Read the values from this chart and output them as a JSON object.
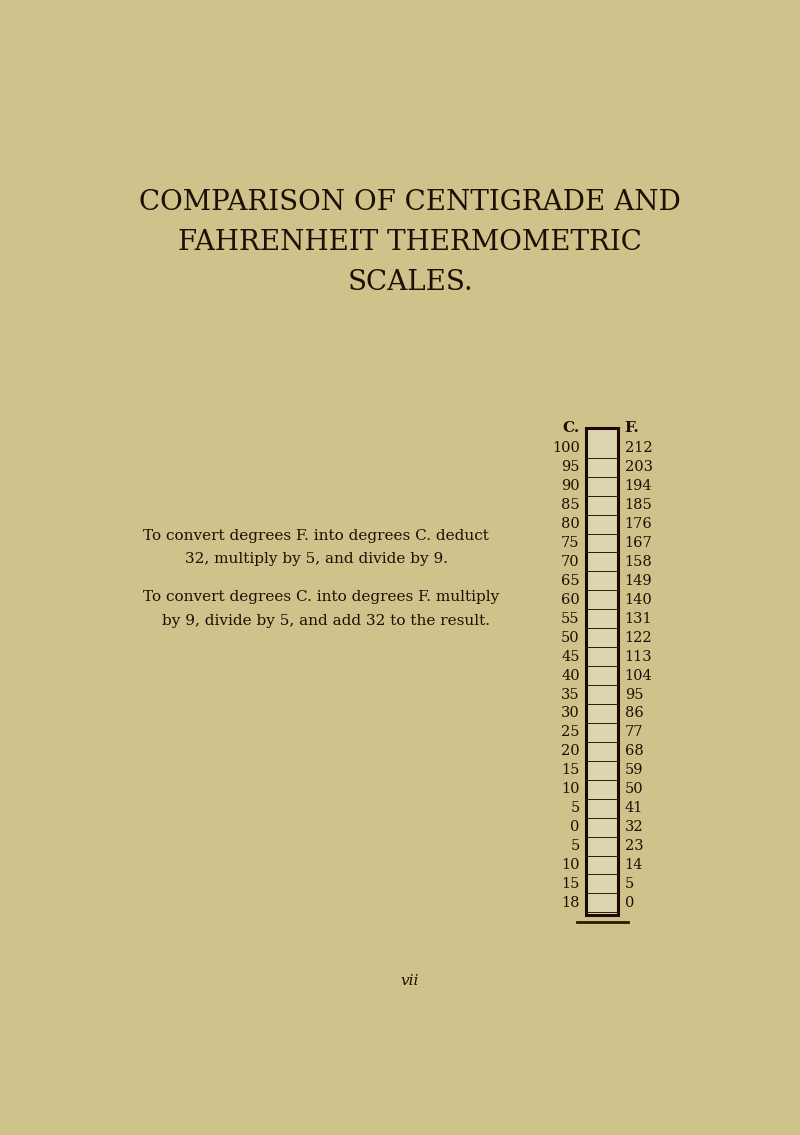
{
  "title_line1": "COMPARISON OF CENTIGRADE AND",
  "title_line2": "FAHRENHEIT THERMOMETRIC",
  "title_line3": "SCALES.",
  "instruction1_line1": "To convert degrees F. into degrees C. deduct",
  "instruction1_line2": "32, multiply by 5, and divide by 9.",
  "instruction2_line1": "To convert degrees C. into degrees F. multiply",
  "instruction2_line2": "by 9, divide by 5, and add 32 to the result.",
  "c_label": "C.",
  "f_label": "F.",
  "c_display": [
    "100",
    "95",
    "90",
    "85",
    "80",
    "75",
    "70",
    "65",
    "60",
    "55",
    "50",
    "45",
    "40",
    "35",
    "30",
    "25",
    "20",
    "15",
    "10",
    "5",
    "0",
    "5",
    "10",
    "15",
    "18"
  ],
  "f_display": [
    "212",
    "203",
    "194",
    "185",
    "176",
    "167",
    "158",
    "149",
    "140",
    "131",
    "122",
    "113",
    "104",
    "95",
    "86",
    "77",
    "68",
    "59",
    "50",
    "41",
    "32",
    "23",
    "14",
    "5",
    "0"
  ],
  "background_color": "#cfc28a",
  "text_color": "#1e0f05",
  "thermometer_bg": "#ddd5b0",
  "thermometer_border": "#1a0a00",
  "line_color": "#2a1a00",
  "footer_text": "vii",
  "title_fontsize": 20,
  "body_fontsize": 11,
  "table_fontsize": 10.5,
  "header_fontsize": 11
}
